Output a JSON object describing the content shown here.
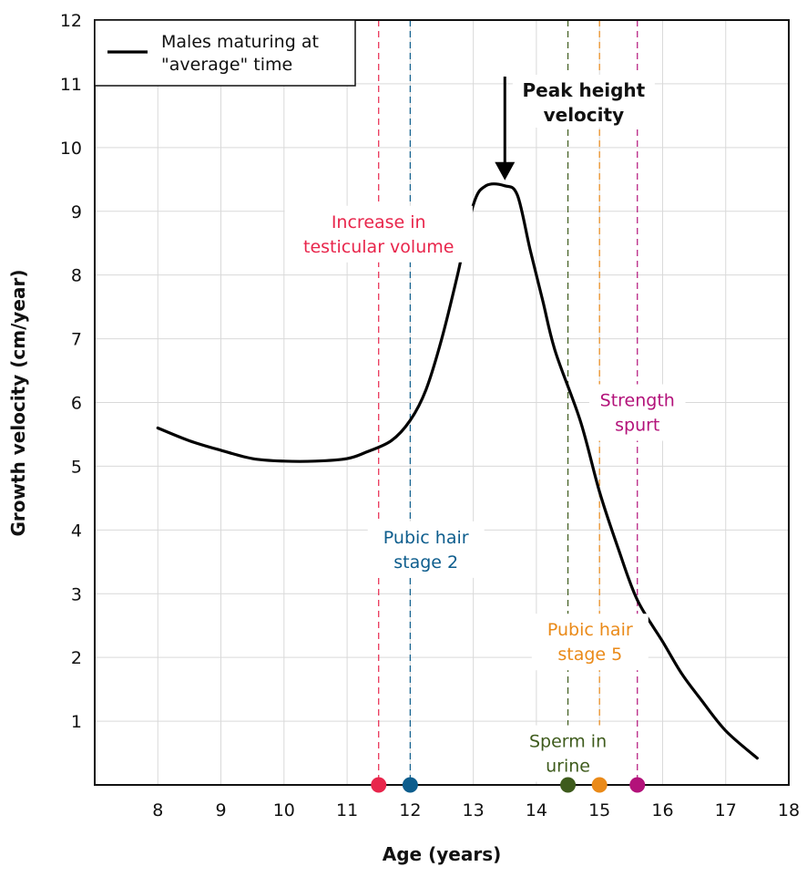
{
  "chart_data": {
    "type": "line",
    "title": "",
    "xlabel": "Age (years)",
    "ylabel": "Growth velocity (cm/year)",
    "xlim": [
      7,
      18
    ],
    "ylim": [
      0,
      12
    ],
    "x_ticks": [
      8,
      9,
      10,
      11,
      12,
      13,
      14,
      15,
      16,
      17,
      18
    ],
    "y_ticks": [
      1,
      2,
      3,
      4,
      5,
      6,
      7,
      8,
      9,
      10,
      11,
      12
    ],
    "grid": true,
    "legend": {
      "placement": "top-left",
      "entries": [
        [
          "Males maturing at",
          "\"average\" time"
        ]
      ]
    },
    "series": [
      {
        "name": "Males maturing at \"average\" time",
        "color": "#000000",
        "x": [
          8,
          8.5,
          9,
          9.5,
          10,
          10.5,
          11,
          11.3,
          11.7,
          12,
          12.25,
          12.5,
          12.75,
          13,
          13.2,
          13.5,
          13.7,
          13.9,
          14.1,
          14.3,
          14.7,
          15,
          15.3,
          15.6,
          16,
          16.3,
          16.6,
          17,
          17.5
        ],
        "y": [
          5.6,
          5.4,
          5.25,
          5.12,
          5.08,
          5.08,
          5.12,
          5.22,
          5.4,
          5.72,
          6.2,
          7.0,
          8.0,
          9.1,
          9.4,
          9.4,
          9.25,
          8.4,
          7.6,
          6.8,
          5.7,
          4.6,
          3.7,
          2.9,
          2.25,
          1.75,
          1.35,
          0.85,
          0.42
        ]
      }
    ],
    "markers": [
      {
        "label": [
          "Increase in",
          "testicular volume"
        ],
        "x": 11.5,
        "color": "#e8254b"
      },
      {
        "label": [
          "Pubic hair",
          "stage 2"
        ],
        "x": 12.0,
        "color": "#0d5d8d"
      },
      {
        "label": [
          "Sperm in",
          "urine"
        ],
        "x": 14.5,
        "color": "#3e5b1c"
      },
      {
        "label": [
          "Pubic hair",
          "stage 5"
        ],
        "x": 15.0,
        "color": "#ea8a19"
      },
      {
        "label": [
          "Strength",
          "spurt"
        ],
        "x": 15.6,
        "color": "#b3127a"
      }
    ],
    "annotations": [
      {
        "text": [
          "Peak height",
          "velocity"
        ],
        "x": 13.5,
        "y": 9.4
      }
    ]
  }
}
